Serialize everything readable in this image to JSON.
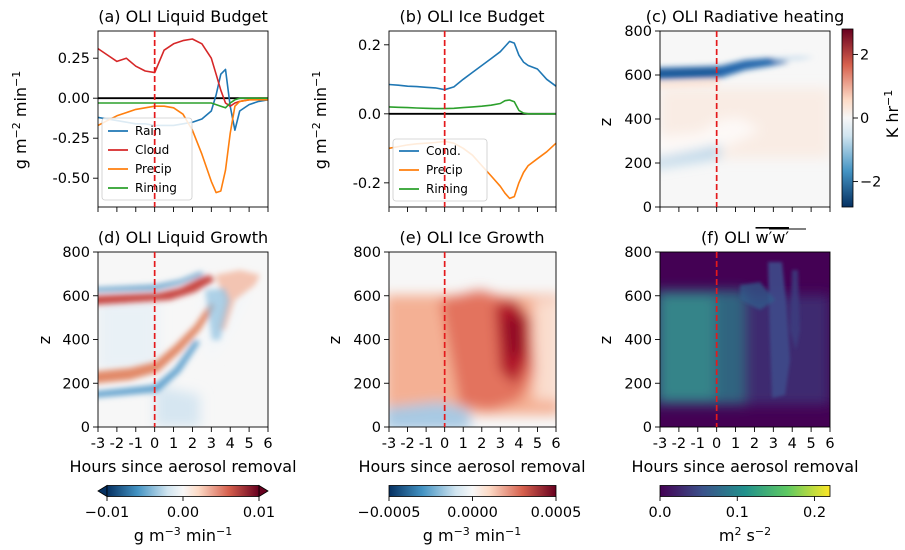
{
  "chart_data": [
    {
      "type": "line",
      "title": "(a) OLI Liquid Budget",
      "ylabel": "g m⁻² min⁻¹",
      "xlim": [
        -3,
        6
      ],
      "ylim": [
        -0.68,
        0.42
      ],
      "yticks": [
        "0.25",
        "0.00",
        "-0.25",
        "-0.50"
      ],
      "ytick_values": [
        0.25,
        0,
        -0.25,
        -0.5
      ],
      "vline_x": 0,
      "zero_line": true,
      "legend_location": "lower-left",
      "x": [
        -3,
        -2.5,
        -2,
        -1.5,
        -1,
        -0.5,
        0,
        0.5,
        1,
        1.5,
        2,
        2.5,
        3,
        3.25,
        3.5,
        3.75,
        4,
        4.25,
        4.5,
        5,
        5.5,
        6
      ],
      "series": [
        {
          "name": "Rain",
          "color": "#1f77b4",
          "values": [
            -0.12,
            -0.13,
            -0.14,
            -0.15,
            -0.16,
            -0.16,
            -0.17,
            -0.17,
            -0.17,
            -0.16,
            -0.15,
            -0.13,
            -0.08,
            0.02,
            0.15,
            0.18,
            -0.05,
            -0.2,
            -0.08,
            -0.04,
            -0.02,
            -0.01
          ]
        },
        {
          "name": "Cloud",
          "color": "#d62728",
          "values": [
            0.31,
            0.27,
            0.23,
            0.25,
            0.2,
            0.17,
            0.16,
            0.3,
            0.34,
            0.36,
            0.37,
            0.34,
            0.25,
            0.15,
            0.05,
            -0.03,
            -0.05,
            -0.03,
            -0.02,
            -0.01,
            0,
            0
          ]
        },
        {
          "name": "Precip",
          "color": "#ff7f0e",
          "values": [
            -0.17,
            -0.14,
            -0.11,
            -0.09,
            -0.07,
            -0.06,
            -0.05,
            -0.05,
            -0.06,
            -0.1,
            -0.2,
            -0.35,
            -0.52,
            -0.59,
            -0.58,
            -0.45,
            -0.22,
            -0.05,
            -0.02,
            -0.01,
            -0.01,
            -0.01
          ]
        },
        {
          "name": "Riming",
          "color": "#2ca02c",
          "values": [
            -0.03,
            -0.03,
            -0.03,
            -0.03,
            -0.03,
            -0.03,
            -0.03,
            -0.03,
            -0.03,
            -0.03,
            -0.03,
            -0.03,
            -0.03,
            -0.04,
            -0.05,
            -0.06,
            -0.03,
            -0.01,
            0,
            0,
            0,
            0
          ]
        }
      ]
    },
    {
      "type": "line",
      "title": "(b) OLI Ice Budget",
      "ylabel": "g m⁻² min⁻¹",
      "xlim": [
        -3,
        6
      ],
      "ylim": [
        -0.27,
        0.24
      ],
      "yticks": [
        "0.2",
        "0.0",
        "-0.2"
      ],
      "ytick_values": [
        0.2,
        0,
        -0.2
      ],
      "vline_x": 0,
      "zero_line": true,
      "legend_location": "lower-left",
      "x": [
        -3,
        -2.5,
        -2,
        -1.5,
        -1,
        -0.5,
        0,
        0.5,
        1,
        1.5,
        2,
        2.5,
        3,
        3.25,
        3.5,
        3.75,
        4,
        4.25,
        4.5,
        5,
        5.5,
        6
      ],
      "series": [
        {
          "name": "Cond.",
          "color": "#1f77b4",
          "values": [
            0.085,
            0.083,
            0.08,
            0.079,
            0.077,
            0.075,
            0.07,
            0.078,
            0.1,
            0.12,
            0.14,
            0.16,
            0.18,
            0.195,
            0.21,
            0.205,
            0.17,
            0.15,
            0.14,
            0.13,
            0.1,
            0.08
          ]
        },
        {
          "name": "Precip",
          "color": "#ff7f0e",
          "values": [
            -0.1,
            -0.095,
            -0.09,
            -0.087,
            -0.085,
            -0.083,
            -0.08,
            -0.085,
            -0.1,
            -0.12,
            -0.15,
            -0.18,
            -0.21,
            -0.23,
            -0.245,
            -0.24,
            -0.2,
            -0.17,
            -0.15,
            -0.13,
            -0.11,
            -0.085
          ]
        },
        {
          "name": "Riming",
          "color": "#2ca02c",
          "values": [
            0.02,
            0.019,
            0.018,
            0.017,
            0.016,
            0.015,
            0.015,
            0.016,
            0.018,
            0.02,
            0.022,
            0.025,
            0.03,
            0.038,
            0.04,
            0.035,
            0.01,
            0.002,
            0,
            0,
            0,
            0
          ]
        }
      ]
    },
    {
      "type": "heatmap",
      "title": "(c) OLI Radiative heating",
      "ylabel": "z",
      "xlim": [
        -3,
        6
      ],
      "ylim": [
        0,
        800
      ],
      "yticks": [
        "0",
        "200",
        "400",
        "600",
        "800"
      ],
      "vline_x": 0,
      "colorbar": {
        "label": "K hr⁻¹",
        "ticks": [
          "2",
          "0",
          "−2"
        ],
        "tick_values": [
          2,
          0,
          -2
        ],
        "range": [
          -2.8,
          2.8
        ]
      }
    },
    {
      "type": "heatmap",
      "title": "(d) OLI Liquid Growth",
      "ylabel": "z",
      "xlabel": "Hours since aerosol removal",
      "xlim": [
        -3,
        6
      ],
      "ylim": [
        0,
        800
      ],
      "xticks": [
        "-3",
        "-2",
        "-1",
        "0",
        "1",
        "2",
        "3",
        "4",
        "5",
        "6"
      ],
      "yticks": [
        "0",
        "200",
        "400",
        "600",
        "800"
      ],
      "vline_x": 0,
      "colorbar": {
        "label": "g m⁻³ min⁻¹",
        "ticks": [
          "−0.01",
          "0.00",
          "0.01"
        ],
        "tick_values": [
          -0.01,
          0,
          0.01
        ]
      }
    },
    {
      "type": "heatmap",
      "title": "(e) OLI Ice Growth",
      "ylabel": "z",
      "xlabel": "Hours since aerosol removal",
      "xlim": [
        -3,
        6
      ],
      "ylim": [
        0,
        800
      ],
      "xticks": [
        "-3",
        "-2",
        "-1",
        "0",
        "1",
        "2",
        "3",
        "4",
        "5",
        "6"
      ],
      "yticks": [
        "0",
        "200",
        "400",
        "600",
        "800"
      ],
      "vline_x": 0,
      "colorbar": {
        "label": "g m⁻³ min⁻¹",
        "ticks": [
          "−0.0005",
          "0.0000",
          "0.0005"
        ],
        "tick_values": [
          -0.0005,
          0,
          0.0005
        ]
      }
    },
    {
      "type": "heatmap",
      "title": "(f) OLI w′w′",
      "ylabel": "z",
      "xlabel": "Hours since aerosol removal",
      "xlim": [
        -3,
        6
      ],
      "ylim": [
        0,
        800
      ],
      "xticks": [
        "-3",
        "-2",
        "-1",
        "0",
        "1",
        "2",
        "3",
        "4",
        "5",
        "6"
      ],
      "yticks": [
        "0",
        "200",
        "400",
        "600",
        "800"
      ],
      "vline_x": 0,
      "colorbar": {
        "label": "m² s⁻²",
        "ticks": [
          "0.0",
          "0.1",
          "0.2"
        ],
        "tick_values": [
          0,
          0.1,
          0.2
        ]
      }
    }
  ],
  "colors": {
    "vline": "#e41a1c",
    "zero_line": "#000000"
  }
}
